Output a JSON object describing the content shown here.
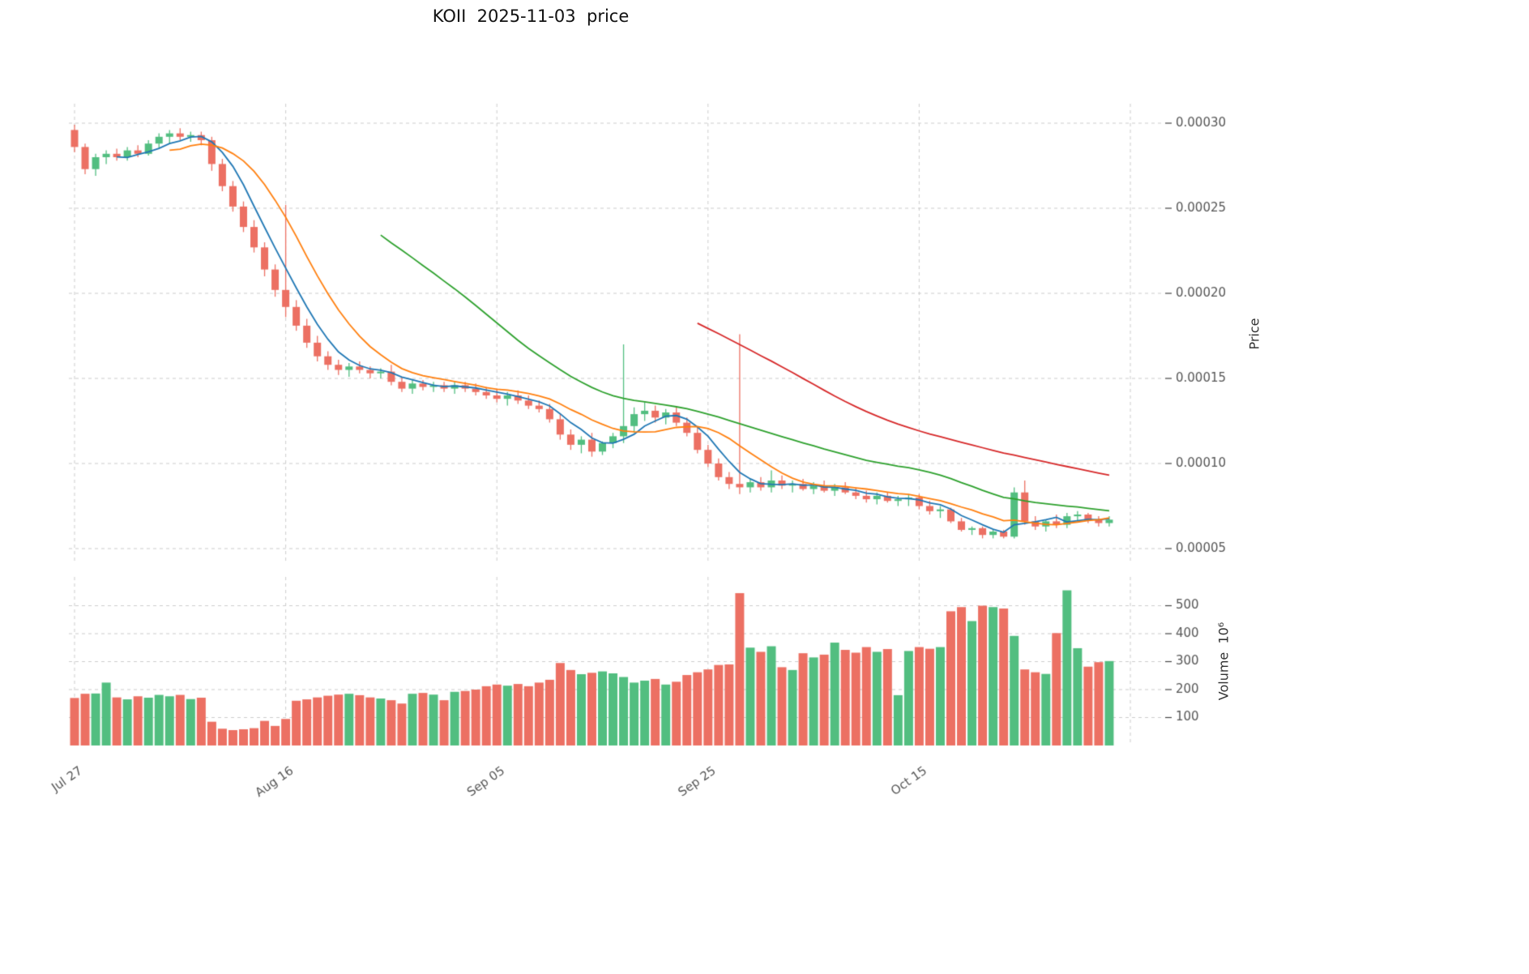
{
  "title": "KOII  2025-11-03  price",
  "axes": {
    "price_axis_title": "Price",
    "volume_axis_title": "Volume  10⁶"
  },
  "chart_data": {
    "type": "candlestick+volume",
    "symbol": "KOII",
    "as_of_date": "2025-11-03",
    "price_scale": 1e-06,
    "price_axis_range": [
      5e-05,
      0.0003
    ],
    "volume_unit": "millions",
    "grid": "dashed",
    "legend": "none",
    "colors": {
      "up": "#52be80",
      "down": "#ec7063",
      "grid": "#cccccc",
      "tick_text": "#555555",
      "tick_mark": "#444444"
    },
    "price_ticks": [
      {
        "value": 50,
        "label": "0.00005"
      },
      {
        "value": 100,
        "label": "0.00010"
      },
      {
        "value": 150,
        "label": "0.00015"
      },
      {
        "value": 200,
        "label": "0.00020"
      },
      {
        "value": 250,
        "label": "0.00025"
      },
      {
        "value": 300,
        "label": "0.00030"
      }
    ],
    "volume_ticks": [
      {
        "value": 100,
        "label": "100"
      },
      {
        "value": 200,
        "label": "200"
      },
      {
        "value": 300,
        "label": "300"
      },
      {
        "value": 400,
        "label": "400"
      },
      {
        "value": 500,
        "label": "500"
      }
    ],
    "x_ticks": [
      {
        "day": 0,
        "label": "Jul 27"
      },
      {
        "day": 20,
        "label": "Aug 16"
      },
      {
        "day": 40,
        "label": "Sep 05"
      },
      {
        "day": 60,
        "label": "Sep 25"
      },
      {
        "day": 80,
        "label": "Oct 15"
      },
      {
        "day": 100,
        "label": ""
      }
    ],
    "moving_averages": [
      {
        "window": 5,
        "color": "#1f77b4"
      },
      {
        "window": 10,
        "color": "#ff7f0e"
      },
      {
        "window": 30,
        "color": "#2ca02c"
      },
      {
        "window": 60,
        "color": "#d62728"
      }
    ],
    "days_format": [
      "open",
      "high",
      "low",
      "close",
      "volume_millions"
    ],
    "days": [
      [
        296,
        299,
        283,
        286,
        170
      ],
      [
        286,
        288,
        270,
        273,
        185
      ],
      [
        273,
        282,
        269,
        280,
        186
      ],
      [
        280,
        284,
        276,
        282,
        225
      ],
      [
        282,
        285,
        278,
        280,
        172
      ],
      [
        280,
        286,
        278,
        284,
        165
      ],
      [
        284,
        287,
        280,
        282,
        176
      ],
      [
        282,
        290,
        281,
        288,
        171
      ],
      [
        288,
        294,
        285,
        292,
        181
      ],
      [
        292,
        296,
        288,
        294,
        176
      ],
      [
        294,
        297,
        290,
        292,
        181
      ],
      [
        292,
        295,
        289,
        293,
        166
      ],
      [
        293,
        295,
        287,
        290,
        171
      ],
      [
        290,
        292,
        272,
        276,
        85
      ],
      [
        276,
        279,
        260,
        263,
        60
      ],
      [
        263,
        266,
        248,
        251,
        55
      ],
      [
        251,
        254,
        236,
        239,
        58
      ],
      [
        239,
        243,
        224,
        227,
        62
      ],
      [
        227,
        230,
        210,
        214,
        88
      ],
      [
        214,
        217,
        198,
        202,
        70
      ],
      [
        202,
        252,
        186,
        192,
        95
      ],
      [
        192,
        196,
        178,
        181,
        160
      ],
      [
        181,
        185,
        168,
        171,
        165
      ],
      [
        171,
        175,
        160,
        163,
        172
      ],
      [
        163,
        166,
        155,
        158,
        178
      ],
      [
        158,
        161,
        152,
        155,
        182
      ],
      [
        155,
        159,
        151,
        157,
        185
      ],
      [
        157,
        160,
        153,
        155,
        180
      ],
      [
        155,
        157,
        150,
        153,
        172
      ],
      [
        153,
        156,
        150,
        154,
        168
      ],
      [
        154,
        158,
        146,
        148,
        162
      ],
      [
        148,
        151,
        142,
        144,
        150
      ],
      [
        144,
        149,
        141,
        147,
        185
      ],
      [
        147,
        149,
        143,
        145,
        188
      ],
      [
        145,
        148,
        142,
        146,
        182
      ],
      [
        146,
        148,
        142,
        144,
        162
      ],
      [
        144,
        148,
        141,
        146,
        192
      ],
      [
        146,
        148,
        142,
        144,
        195
      ],
      [
        144,
        147,
        140,
        142,
        200
      ],
      [
        142,
        145,
        138,
        140,
        212
      ],
      [
        140,
        144,
        136,
        138,
        218
      ],
      [
        138,
        142,
        134,
        140,
        214
      ],
      [
        140,
        143,
        135,
        137,
        220
      ],
      [
        137,
        140,
        132,
        134,
        212
      ],
      [
        134,
        137,
        130,
        132,
        225
      ],
      [
        132,
        135,
        124,
        126,
        235
      ],
      [
        126,
        129,
        114,
        117,
        295
      ],
      [
        117,
        120,
        108,
        111,
        270
      ],
      [
        111,
        116,
        106,
        114,
        255
      ],
      [
        114,
        118,
        104,
        107,
        260
      ],
      [
        107,
        113,
        105,
        112,
        265
      ],
      [
        112,
        118,
        109,
        116,
        258
      ],
      [
        116,
        170,
        112,
        122,
        245
      ],
      [
        122,
        133,
        118,
        129,
        225
      ],
      [
        129,
        136,
        125,
        131,
        232
      ],
      [
        131,
        134,
        124,
        127,
        238
      ],
      [
        127,
        132,
        123,
        130,
        218
      ],
      [
        130,
        133,
        122,
        124,
        228
      ],
      [
        124,
        127,
        116,
        118,
        252
      ],
      [
        118,
        121,
        106,
        108,
        262
      ],
      [
        108,
        111,
        98,
        100,
        272
      ],
      [
        100,
        103,
        90,
        92,
        288
      ],
      [
        92,
        95,
        85,
        88,
        290
      ],
      [
        88,
        176,
        82,
        86,
        545
      ],
      [
        86,
        91,
        83,
        89,
        350
      ],
      [
        89,
        92,
        84,
        86,
        335
      ],
      [
        86,
        96,
        83,
        90,
        355
      ],
      [
        90,
        93,
        85,
        87,
        280
      ],
      [
        87,
        90,
        83,
        88,
        270
      ],
      [
        88,
        91,
        84,
        85,
        330
      ],
      [
        85,
        89,
        82,
        87,
        315
      ],
      [
        87,
        90,
        83,
        84,
        325
      ],
      [
        84,
        88,
        81,
        86,
        368
      ],
      [
        86,
        89,
        82,
        83,
        342
      ],
      [
        83,
        86,
        79,
        81,
        332
      ],
      [
        81,
        84,
        77,
        79,
        352
      ],
      [
        79,
        83,
        76,
        81,
        335
      ],
      [
        81,
        83,
        77,
        78,
        345
      ],
      [
        78,
        81,
        75,
        79,
        180
      ],
      [
        79,
        82,
        75,
        80,
        338
      ],
      [
        80,
        82,
        73,
        75,
        352
      ],
      [
        75,
        78,
        70,
        72,
        346
      ],
      [
        72,
        75,
        68,
        73,
        352
      ],
      [
        73,
        74,
        65,
        66,
        480
      ],
      [
        66,
        68,
        60,
        61,
        495
      ],
      [
        61,
        63,
        58,
        62,
        445
      ],
      [
        62,
        63,
        56,
        58,
        500
      ],
      [
        58,
        61,
        56,
        60,
        495
      ],
      [
        60,
        61,
        56,
        57,
        490
      ],
      [
        57,
        86,
        56,
        83,
        392
      ],
      [
        83,
        90,
        64,
        66,
        272
      ],
      [
        66,
        69,
        61,
        63,
        262
      ],
      [
        63,
        67,
        60,
        66,
        256
      ],
      [
        66,
        70,
        62,
        64,
        402
      ],
      [
        64,
        71,
        62,
        69,
        555
      ],
      [
        69,
        72,
        66,
        70,
        348
      ],
      [
        70,
        71,
        65,
        67,
        282
      ],
      [
        67,
        69,
        63,
        65,
        298
      ],
      [
        65,
        69,
        63,
        67,
        302
      ]
    ]
  }
}
